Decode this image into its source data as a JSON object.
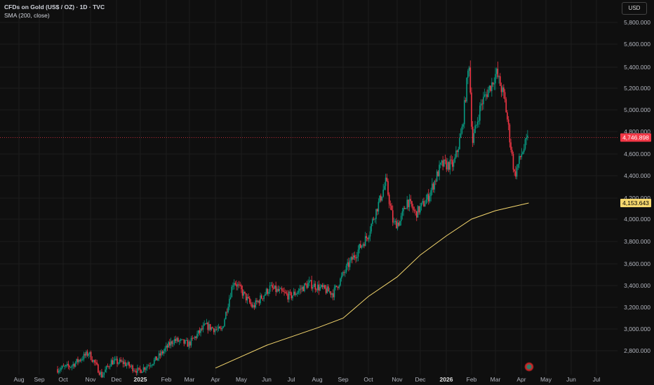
{
  "header": {
    "title": "CFDs on Gold (US$ / OZ) · 1D · TVC",
    "indicator": "SMA (200, close)"
  },
  "currency_button": "USD",
  "chart_data": {
    "type": "candlestick",
    "title": "CFDs on Gold (US$ / OZ) · 1D · TVC",
    "y_ticks": [
      "5,800.000",
      "5,600.000",
      "5,400.000",
      "5,200.000",
      "5,000.000",
      "4,800.000",
      "4,600.000",
      "4,400.000",
      "4,200.000",
      "4,000.000",
      "3,800.000",
      "3,600.000",
      "3,400.000",
      "3,200.000",
      "3,000.000",
      "2,800.000"
    ],
    "x_ticks": [
      "Aug",
      "Sep",
      "Oct",
      "Nov",
      "Dec",
      "2025",
      "Feb",
      "Mar",
      "Apr",
      "May",
      "Jun",
      "Jul",
      "Aug",
      "Sep",
      "Oct",
      "Nov",
      "Dec",
      "2026",
      "Feb",
      "Mar",
      "Apr",
      "May",
      "Jun",
      "Jul"
    ],
    "last_price": {
      "label": "4,746.898",
      "value": 4746.898,
      "color": "#f23645"
    },
    "sma": {
      "label": "4,153.643",
      "value": 4153.643,
      "color": "#f5d76e"
    },
    "up_color": "#089981",
    "down_color": "#f23645",
    "price_path": [
      [
        "2024-09-24",
        2630
      ],
      [
        "2024-10-10",
        2660
      ],
      [
        "2024-10-30",
        2780
      ],
      [
        "2024-11-14",
        2570
      ],
      [
        "2024-11-25",
        2700
      ],
      [
        "2024-12-10",
        2690
      ],
      [
        "2024-12-30",
        2610
      ],
      [
        "2025-01-20",
        2720
      ],
      [
        "2025-02-10",
        2900
      ],
      [
        "2025-02-28",
        2860
      ],
      [
        "2025-03-20",
        3030
      ],
      [
        "2025-04-08",
        2980
      ],
      [
        "2025-04-22",
        3450
      ],
      [
        "2025-05-15",
        3200
      ],
      [
        "2025-06-05",
        3380
      ],
      [
        "2025-06-30",
        3300
      ],
      [
        "2025-07-22",
        3420
      ],
      [
        "2025-08-20",
        3330
      ],
      [
        "2025-09-08",
        3600
      ],
      [
        "2025-09-30",
        3850
      ],
      [
        "2025-10-20",
        4350
      ],
      [
        "2025-10-28",
        3950
      ],
      [
        "2025-11-05",
        3980
      ],
      [
        "2025-11-14",
        4180
      ],
      [
        "2025-11-25",
        4050
      ],
      [
        "2025-12-10",
        4200
      ],
      [
        "2025-12-26",
        4500
      ],
      [
        "2026-01-10",
        4500
      ],
      [
        "2026-01-20",
        4800
      ],
      [
        "2026-01-29",
        5450
      ],
      [
        "2026-02-02",
        4700
      ],
      [
        "2026-02-12",
        5050
      ],
      [
        "2026-02-25",
        5250
      ],
      [
        "2026-03-02",
        5350
      ],
      [
        "2026-03-12",
        5100
      ],
      [
        "2026-03-24",
        4400
      ],
      [
        "2026-04-01",
        4600
      ],
      [
        "2026-04-10",
        4750
      ]
    ],
    "sma_path": [
      [
        "2025-04-01",
        2640
      ],
      [
        "2025-06-01",
        2850
      ],
      [
        "2025-08-01",
        3010
      ],
      [
        "2025-09-01",
        3100
      ],
      [
        "2025-10-01",
        3300
      ],
      [
        "2025-11-01",
        3480
      ],
      [
        "2025-12-01",
        3680
      ],
      [
        "2026-01-01",
        3850
      ],
      [
        "2026-02-01",
        4000
      ],
      [
        "2026-03-01",
        4080
      ],
      [
        "2026-04-10",
        4153.643
      ]
    ]
  }
}
